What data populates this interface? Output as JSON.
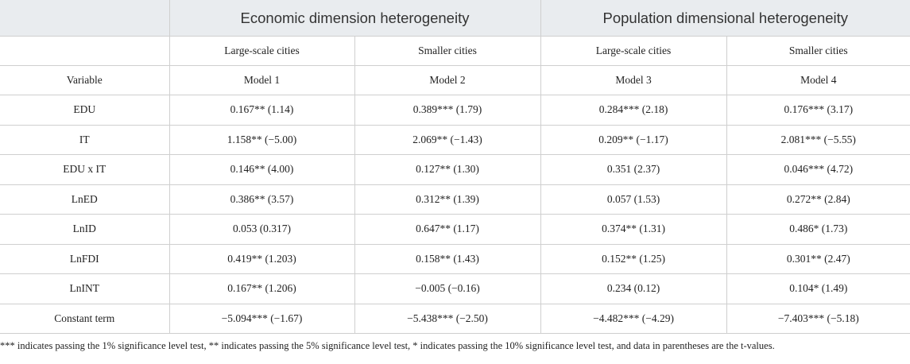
{
  "table": {
    "group_headers": [
      "Economic dimension heterogeneity",
      "Population dimensional heterogeneity"
    ],
    "sub_headers": [
      "Large-scale cities",
      "Smaller cities",
      "Large-scale cities",
      "Smaller cities"
    ],
    "variable_label": "Variable",
    "models": [
      "Model 1",
      "Model 2",
      "Model 3",
      "Model 4"
    ],
    "rows": [
      {
        "variable": "EDU",
        "cells": [
          "0.167** (1.14)",
          "0.389*** (1.79)",
          "0.284*** (2.18)",
          "0.176*** (3.17)"
        ]
      },
      {
        "variable": "IT",
        "cells": [
          "1.158** (−5.00)",
          "2.069** (−1.43)",
          "0.209** (−1.17)",
          "2.081*** (−5.55)"
        ]
      },
      {
        "variable": "EDU x IT",
        "cells": [
          "0.146** (4.00)",
          "0.127** (1.30)",
          "0.351 (2.37)",
          "0.046*** (4.72)"
        ]
      },
      {
        "variable": "LnED",
        "cells": [
          "0.386** (3.57)",
          "0.312** (1.39)",
          "0.057 (1.53)",
          "0.272** (2.84)"
        ]
      },
      {
        "variable": "LnID",
        "cells": [
          "0.053 (0.317)",
          "0.647** (1.17)",
          "0.374** (1.31)",
          "0.486* (1.73)"
        ]
      },
      {
        "variable": "LnFDI",
        "cells": [
          "0.419** (1.203)",
          "0.158** (1.43)",
          "0.152** (1.25)",
          "0.301** (2.47)"
        ]
      },
      {
        "variable": "LnINT",
        "cells": [
          "0.167** (1.206)",
          "−0.005 (−0.16)",
          "0.234 (0.12)",
          "0.104* (1.49)"
        ]
      },
      {
        "variable": "Constant term",
        "cells": [
          "−5.094*** (−1.67)",
          "−5.438*** (−2.50)",
          "−4.482*** (−4.29)",
          "−7.403*** (−5.18)"
        ]
      }
    ]
  },
  "footnote": "*** indicates passing the 1% significance level test, ** indicates passing the 5% significance level test, * indicates passing the 10% significance level test, and data in parentheses are the t-values."
}
